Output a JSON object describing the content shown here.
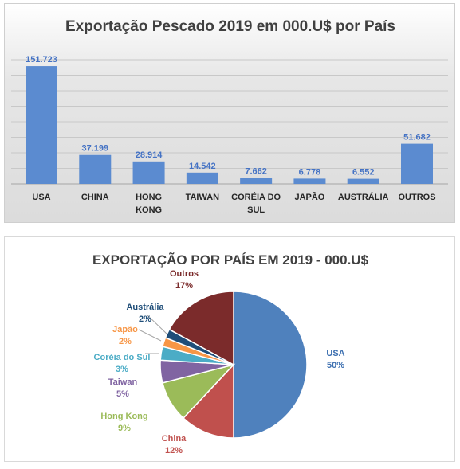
{
  "chart_data": [
    {
      "type": "bar",
      "title": "Exportação Pescado 2019 em 000.U$ por País",
      "categories": [
        [
          "USA"
        ],
        [
          "CHINA"
        ],
        [
          "HONG",
          "KONG"
        ],
        [
          "TAIWAN"
        ],
        [
          "CORÉIA DO",
          "SUL"
        ],
        [
          "JAPÃO"
        ],
        [
          "AUSTRÁLIA"
        ],
        [
          "OUTROS"
        ]
      ],
      "values": [
        151723,
        37199,
        28914,
        14542,
        7662,
        6778,
        6552,
        51682
      ],
      "data_labels": [
        "151.723",
        "37.199",
        "28.914",
        "14.542",
        "7.662",
        "6.778",
        "6.552",
        "51.682"
      ],
      "ylim": [
        0,
        160000
      ],
      "grid": true,
      "legend": false,
      "bar_color": "#5b8bd0"
    },
    {
      "type": "pie",
      "title": "EXPORTAÇÃO POR PAÍS EM 2019 - 000.U$",
      "start": "top",
      "direction": "clockwise",
      "slices": [
        {
          "label": "USA",
          "value": 50,
          "pct": "50%",
          "color": "#4f81bd"
        },
        {
          "label": "China",
          "value": 12,
          "pct": "12%",
          "color": "#c0504d"
        },
        {
          "label": "Hong Kong",
          "value": 9,
          "pct": "9%",
          "color": "#9bbb59"
        },
        {
          "label": "Taiwan",
          "value": 5,
          "pct": "5%",
          "color": "#8064a2"
        },
        {
          "label": "Coréia do Sul",
          "value": 3,
          "pct": "3%",
          "color": "#4bacc6"
        },
        {
          "label": "Japão",
          "value": 2,
          "pct": "2%",
          "color": "#f79646"
        },
        {
          "label": "Austrália",
          "value": 2,
          "pct": "2%",
          "color": "#1f4e79"
        },
        {
          "label": "Outros",
          "value": 17,
          "pct": "17%",
          "color": "#7b2b2b"
        }
      ]
    }
  ]
}
